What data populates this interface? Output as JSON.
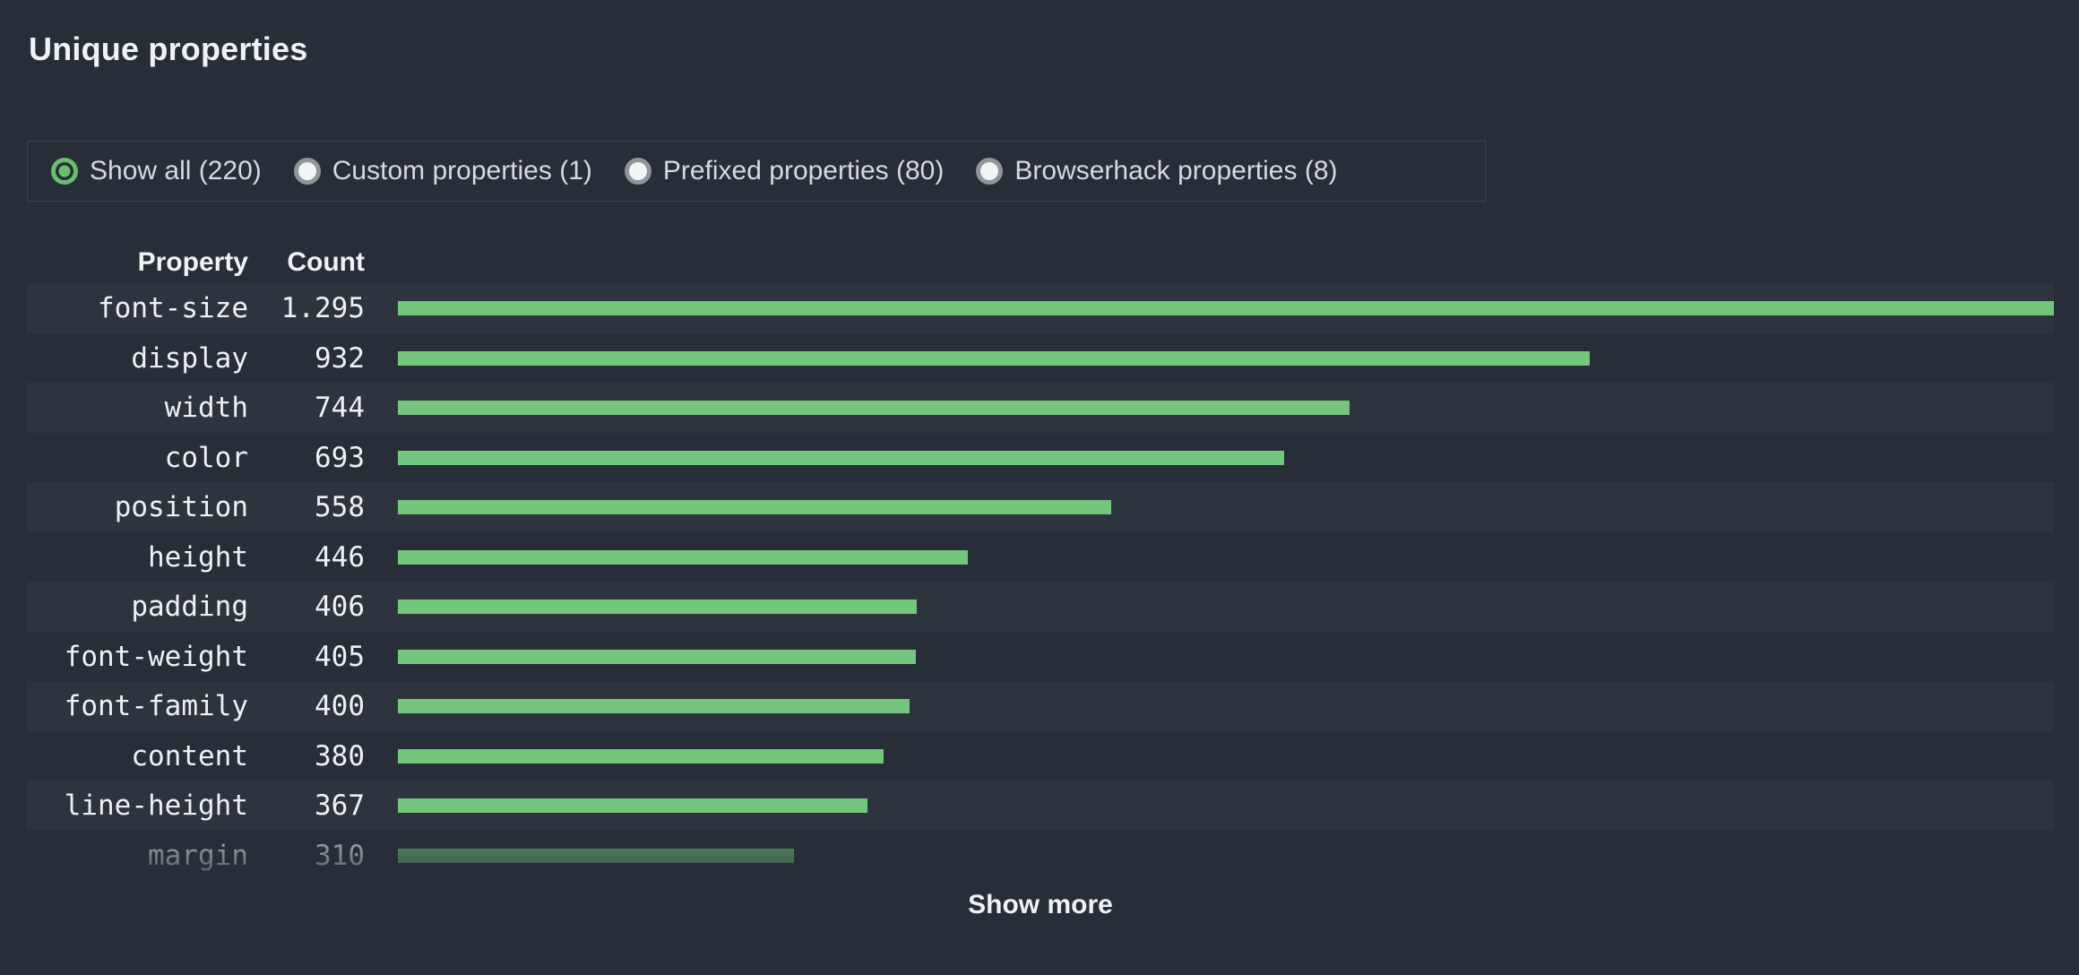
{
  "title": "Unique properties",
  "filters": [
    {
      "label": "Show all (220)",
      "selected": true
    },
    {
      "label": "Custom properties (1)",
      "selected": false
    },
    {
      "label": "Prefixed properties (80)",
      "selected": false
    },
    {
      "label": "Browserhack properties (8)",
      "selected": false
    }
  ],
  "table": {
    "columns": [
      "Property",
      "Count"
    ],
    "max_count": 1295,
    "rows": [
      {
        "property": "font-size",
        "count_label": "1.295",
        "count": 1295,
        "faded": false
      },
      {
        "property": "display",
        "count_label": "932",
        "count": 932,
        "faded": false
      },
      {
        "property": "width",
        "count_label": "744",
        "count": 744,
        "faded": false
      },
      {
        "property": "color",
        "count_label": "693",
        "count": 693,
        "faded": false
      },
      {
        "property": "position",
        "count_label": "558",
        "count": 558,
        "faded": false
      },
      {
        "property": "height",
        "count_label": "446",
        "count": 446,
        "faded": false
      },
      {
        "property": "padding",
        "count_label": "406",
        "count": 406,
        "faded": false
      },
      {
        "property": "font-weight",
        "count_label": "405",
        "count": 405,
        "faded": false
      },
      {
        "property": "font-family",
        "count_label": "400",
        "count": 400,
        "faded": false
      },
      {
        "property": "content",
        "count_label": "380",
        "count": 380,
        "faded": false
      },
      {
        "property": "line-height",
        "count_label": "367",
        "count": 367,
        "faded": false
      },
      {
        "property": "margin",
        "count_label": "310",
        "count": 310,
        "faded": true
      }
    ]
  },
  "show_more_label": "Show more",
  "colors": {
    "page_bg": "#272e37",
    "row_alt_bg": "#2e343d",
    "bar_green": "#75c67d",
    "radio_selected_green": "#68be6c",
    "filter_border": "#3c444d"
  },
  "chart_data": {
    "type": "bar",
    "orientation": "horizontal",
    "title": "Unique properties",
    "categories": [
      "font-size",
      "display",
      "width",
      "color",
      "position",
      "height",
      "padding",
      "font-weight",
      "font-family",
      "content",
      "line-height",
      "margin"
    ],
    "values": [
      1295,
      932,
      744,
      693,
      558,
      446,
      406,
      405,
      400,
      380,
      367,
      310
    ],
    "value_labels": [
      "1.295",
      "932",
      "744",
      "693",
      "558",
      "446",
      "406",
      "405",
      "400",
      "380",
      "367",
      "310"
    ],
    "xlim": [
      0,
      1295
    ],
    "bar_color": "#75c67d",
    "legend": "none",
    "grid": false
  }
}
